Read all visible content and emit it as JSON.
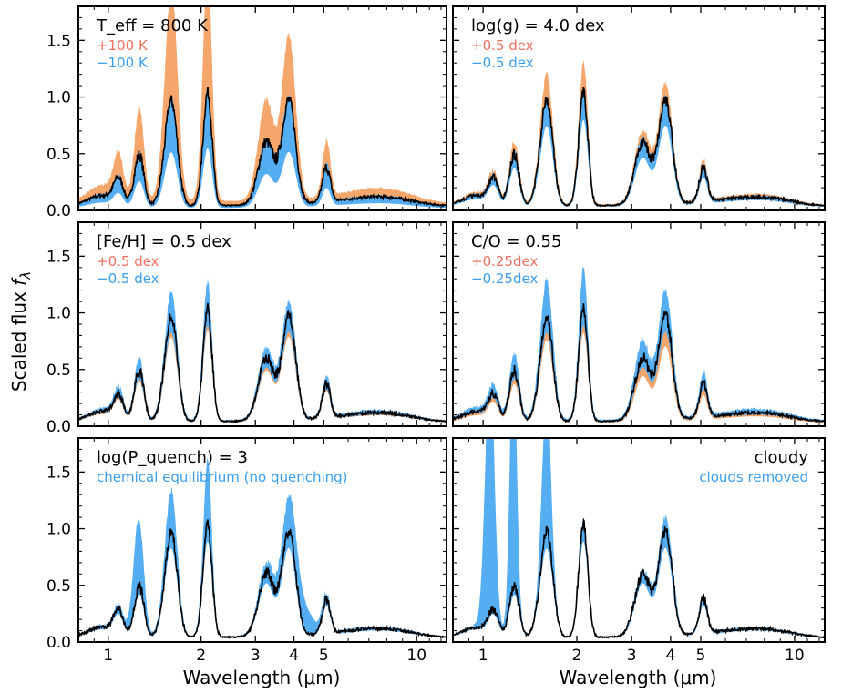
{
  "chart_data": {
    "type": "area",
    "layout": "3x2 grid of spectral panels",
    "ylabel": "Scaled flux f_λ",
    "ylabel_main": "Scaled flux ",
    "ylabel_symbol": "f",
    "ylabel_sub": "λ",
    "xlabel": "Wavelength (μm)",
    "x_scale": "log",
    "xlim": [
      0.8,
      12.5
    ],
    "ylim": [
      0,
      1.8
    ],
    "x_ticks": [
      1,
      2,
      3,
      4,
      5,
      10
    ],
    "x_tick_labels": [
      "1",
      "2",
      "3",
      "4",
      "5",
      "10"
    ],
    "y_ticks": [
      0.0,
      0.5,
      1.0,
      1.5
    ],
    "y_tick_labels": [
      "0.0",
      "0.5",
      "1.0",
      "1.5"
    ],
    "colors": {
      "model": "#000000",
      "plus": "#f5a66a",
      "minus": "#55adf2",
      "plus_text": "#f07060",
      "minus_text": "#3a9ef0"
    },
    "panels": [
      {
        "id": "teff",
        "label_html": "<tspan font-style=\"italic\">T</tspan><tspan font-size=\"12\" dy=\"5\">eff</tspan><tspan dy=\"-5\"> = 800 K</tspan>",
        "label_plain": "T_eff = 800 K",
        "plus_label": "+100 K",
        "minus_label": "−100 K",
        "align": "left",
        "base": {
          "scale": 1.0
        },
        "plus": {
          "scale": 1.55,
          "skew": 0.35
        },
        "minus": {
          "scale": 0.62,
          "skew": 0.0
        },
        "peaks": {
          "y": 0.45,
          "j": 0.93,
          "h": 1.0,
          "k": 0.93
        }
      },
      {
        "id": "logg",
        "label_plain": "log(g) = 4.0 dex",
        "plus_label": "+0.5 dex",
        "minus_label": "−0.5 dex",
        "align": "left",
        "base": {
          "scale": 1.0
        },
        "plus": {
          "scale": 1.12,
          "skew": 0.1
        },
        "minus": {
          "scale": 0.9,
          "skew": 0.0
        },
        "peaks": {
          "y": 0.45,
          "j": 0.93,
          "h": 1.0,
          "k": 0.93
        }
      },
      {
        "id": "feh",
        "label_plain": "[Fe/H] = 0.5 dex",
        "plus_label": "+0.5 dex",
        "minus_label": "−0.5 dex",
        "align": "left",
        "base": {
          "scale": 1.0
        },
        "plus": {
          "scale": 0.95,
          "skew": 0.0
        },
        "minus": {
          "scale": 1.1,
          "skew": 0.1
        },
        "peaks": {
          "y": 0.45,
          "j": 0.93,
          "h": 1.0,
          "k": 0.93
        }
      },
      {
        "id": "co",
        "label_plain": "C/O = 0.55",
        "plus_label": "+0.25dex",
        "minus_label": "−0.25dex",
        "align": "left",
        "base": {
          "scale": 1.0
        },
        "plus": {
          "scale": 0.85,
          "skew": 0.1
        },
        "minus": {
          "scale": 1.2,
          "skew": 0.1
        },
        "peaks": {
          "y": 0.45,
          "j": 0.93,
          "h": 1.0,
          "k": 0.93
        }
      },
      {
        "id": "pquench",
        "label_plain": "log(P_quench) = 3",
        "plus_label": "",
        "minus_label": "chemical equilibrium (no quenching)",
        "align": "left",
        "base": {
          "scale": 1.0
        },
        "plus": null,
        "minus": {
          "scale": 1.2,
          "skew": 0.0,
          "wide": true
        },
        "peaks": {
          "y": 0.45,
          "j": 0.93,
          "h": 1.0,
          "k": 0.93
        }
      },
      {
        "id": "cloudy",
        "label_plain": "cloudy",
        "plus_label": "",
        "minus_label": "clouds removed",
        "align": "right",
        "base": {
          "scale": 1.0
        },
        "plus": null,
        "minus": {
          "scale": 1.05,
          "skew": 0.0,
          "cloudfree": true
        },
        "peaks": {
          "y": 0.45,
          "j": 0.93,
          "h": 1.0,
          "k": 0.93
        }
      }
    ]
  }
}
